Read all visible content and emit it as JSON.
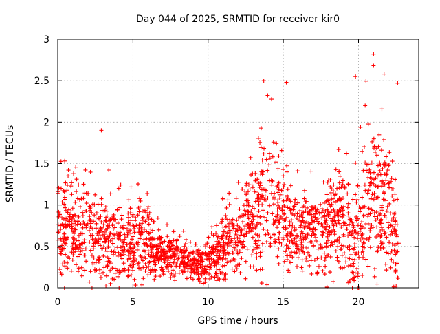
{
  "chart_data": {
    "type": "scatter",
    "title": "Day 044 of 2025, SRMTID for receiver kir0",
    "xlabel": "GPS time / hours",
    "ylabel": "SRMTID / TECUs",
    "xlim": [
      0,
      24
    ],
    "ylim": [
      0,
      3
    ],
    "xticks": [
      0,
      5,
      10,
      15,
      20
    ],
    "xtick_labels": [
      "0",
      "5",
      "10",
      "15",
      "20"
    ],
    "yticks": [
      0,
      0.5,
      1,
      1.5,
      2,
      2.5,
      3
    ],
    "ytick_labels": [
      "0",
      "0.5",
      "1",
      "1.5",
      "2",
      "2.5",
      "3"
    ],
    "grid": true,
    "marker": "+",
    "series": [
      {
        "name": "kir0",
        "color": "#ff0000",
        "x_range": [
          0,
          22.7
        ],
        "profile": {
          "hours": [
            0,
            0.5,
            1,
            2,
            3,
            4,
            5,
            5.5,
            6,
            7,
            8,
            9,
            9.5,
            10,
            11,
            12,
            13,
            13.5,
            14,
            14.5,
            15,
            16,
            17,
            18,
            19,
            19.6,
            20,
            20.5,
            21,
            21.5,
            22,
            22.7
          ],
          "median": [
            0.75,
            0.72,
            0.7,
            0.65,
            0.6,
            0.55,
            0.5,
            0.55,
            0.5,
            0.4,
            0.38,
            0.32,
            0.28,
            0.35,
            0.5,
            0.6,
            0.8,
            1.0,
            1.1,
            1.0,
            0.8,
            0.7,
            0.65,
            0.75,
            0.85,
            0.5,
            0.7,
            1.0,
            1.1,
            1.05,
            1.0,
            0.4
          ],
          "spread": [
            0.4,
            0.4,
            0.45,
            0.45,
            0.45,
            0.4,
            0.35,
            0.35,
            0.3,
            0.18,
            0.15,
            0.15,
            0.15,
            0.2,
            0.3,
            0.35,
            0.45,
            0.55,
            0.6,
            0.5,
            0.4,
            0.35,
            0.35,
            0.45,
            0.5,
            0.45,
            0.55,
            0.7,
            0.75,
            0.65,
            0.55,
            0.35
          ]
        },
        "notable_points": [
          [
            2.9,
            1.9
          ],
          [
            13.7,
            2.5
          ],
          [
            15.2,
            2.48
          ],
          [
            19.8,
            2.55
          ],
          [
            21.0,
            2.82
          ],
          [
            21.0,
            2.68
          ],
          [
            21.7,
            2.58
          ],
          [
            22.6,
            2.47
          ],
          [
            19.6,
            0.0
          ],
          [
            3.5,
            0.05
          ],
          [
            22.5,
            0.02
          ]
        ]
      }
    ]
  }
}
